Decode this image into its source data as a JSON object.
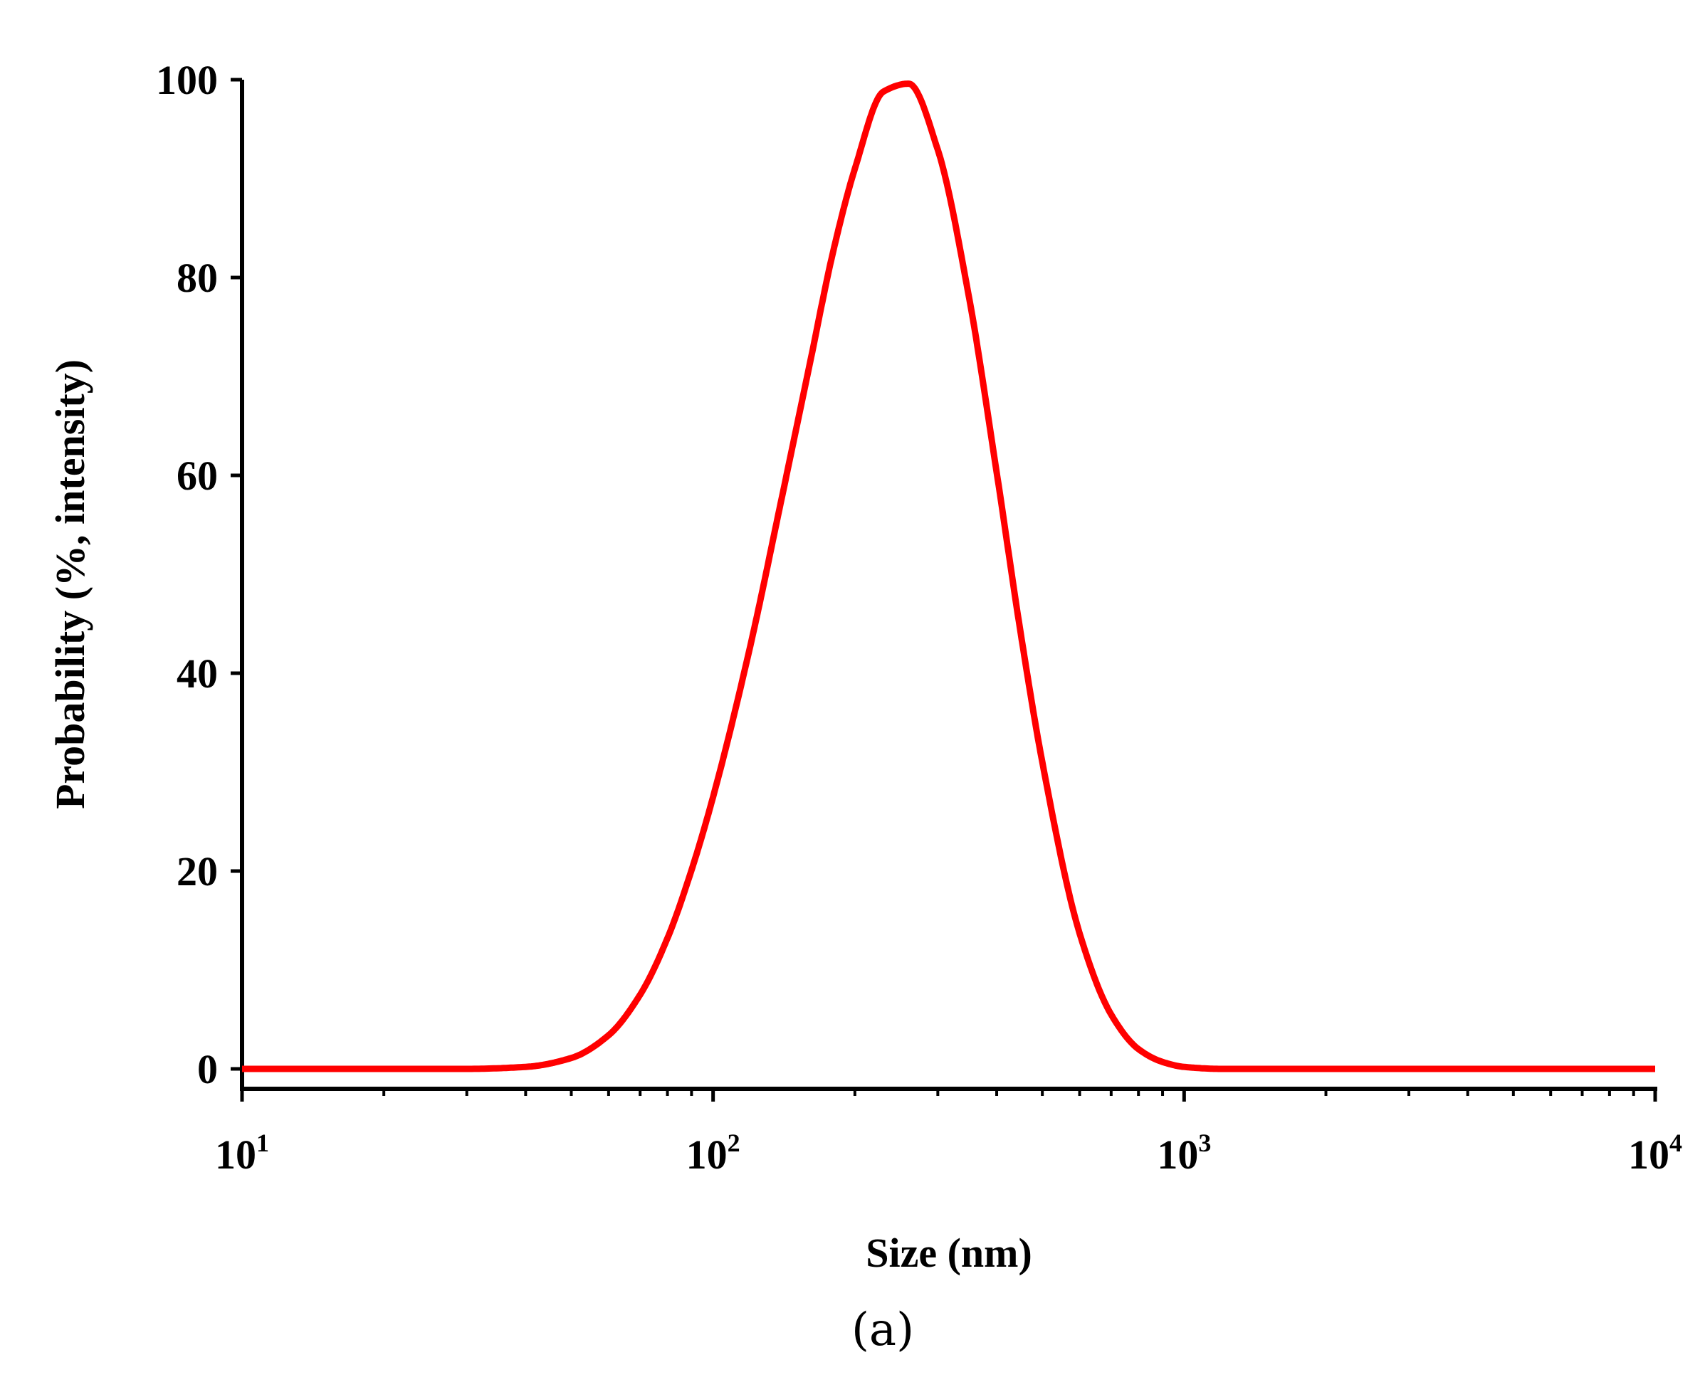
{
  "chart_data": {
    "type": "line",
    "xlabel": "Size (nm)",
    "ylabel": "Probability (%, intensity)",
    "panel_label": "(a)",
    "xscale": "log",
    "xlim": [
      10,
      10000
    ],
    "ylim": [
      0,
      100
    ],
    "x_ticks": [
      {
        "base": "10",
        "exp": "1",
        "value": 10
      },
      {
        "base": "10",
        "exp": "2",
        "value": 100
      },
      {
        "base": "10",
        "exp": "3",
        "value": 1000
      },
      {
        "base": "10",
        "exp": "4",
        "value": 10000
      }
    ],
    "y_ticks": [
      "0",
      "20",
      "40",
      "60",
      "80",
      "100"
    ],
    "grid": false,
    "series": [
      {
        "color": "#ff0000",
        "x": [
          10,
          20,
          30,
          40,
          50,
          60,
          70,
          80,
          90,
          100,
          120,
          140,
          160,
          180,
          200,
          230,
          260,
          300,
          350,
          400,
          450,
          500,
          600,
          700,
          800,
          900,
          1000,
          1200,
          1500,
          2000,
          5000,
          10000
        ],
        "y": [
          0,
          0,
          0,
          0.2,
          1.1,
          3.4,
          7.5,
          13.2,
          20.1,
          27.5,
          42.8,
          57.8,
          71.0,
          82.7,
          91.0,
          98.8,
          99.6,
          92.9,
          77.8,
          60.3,
          44.0,
          31.0,
          13.7,
          5.5,
          2.0,
          0.7,
          0.2,
          0,
          0,
          0,
          0,
          0
        ]
      }
    ]
  }
}
